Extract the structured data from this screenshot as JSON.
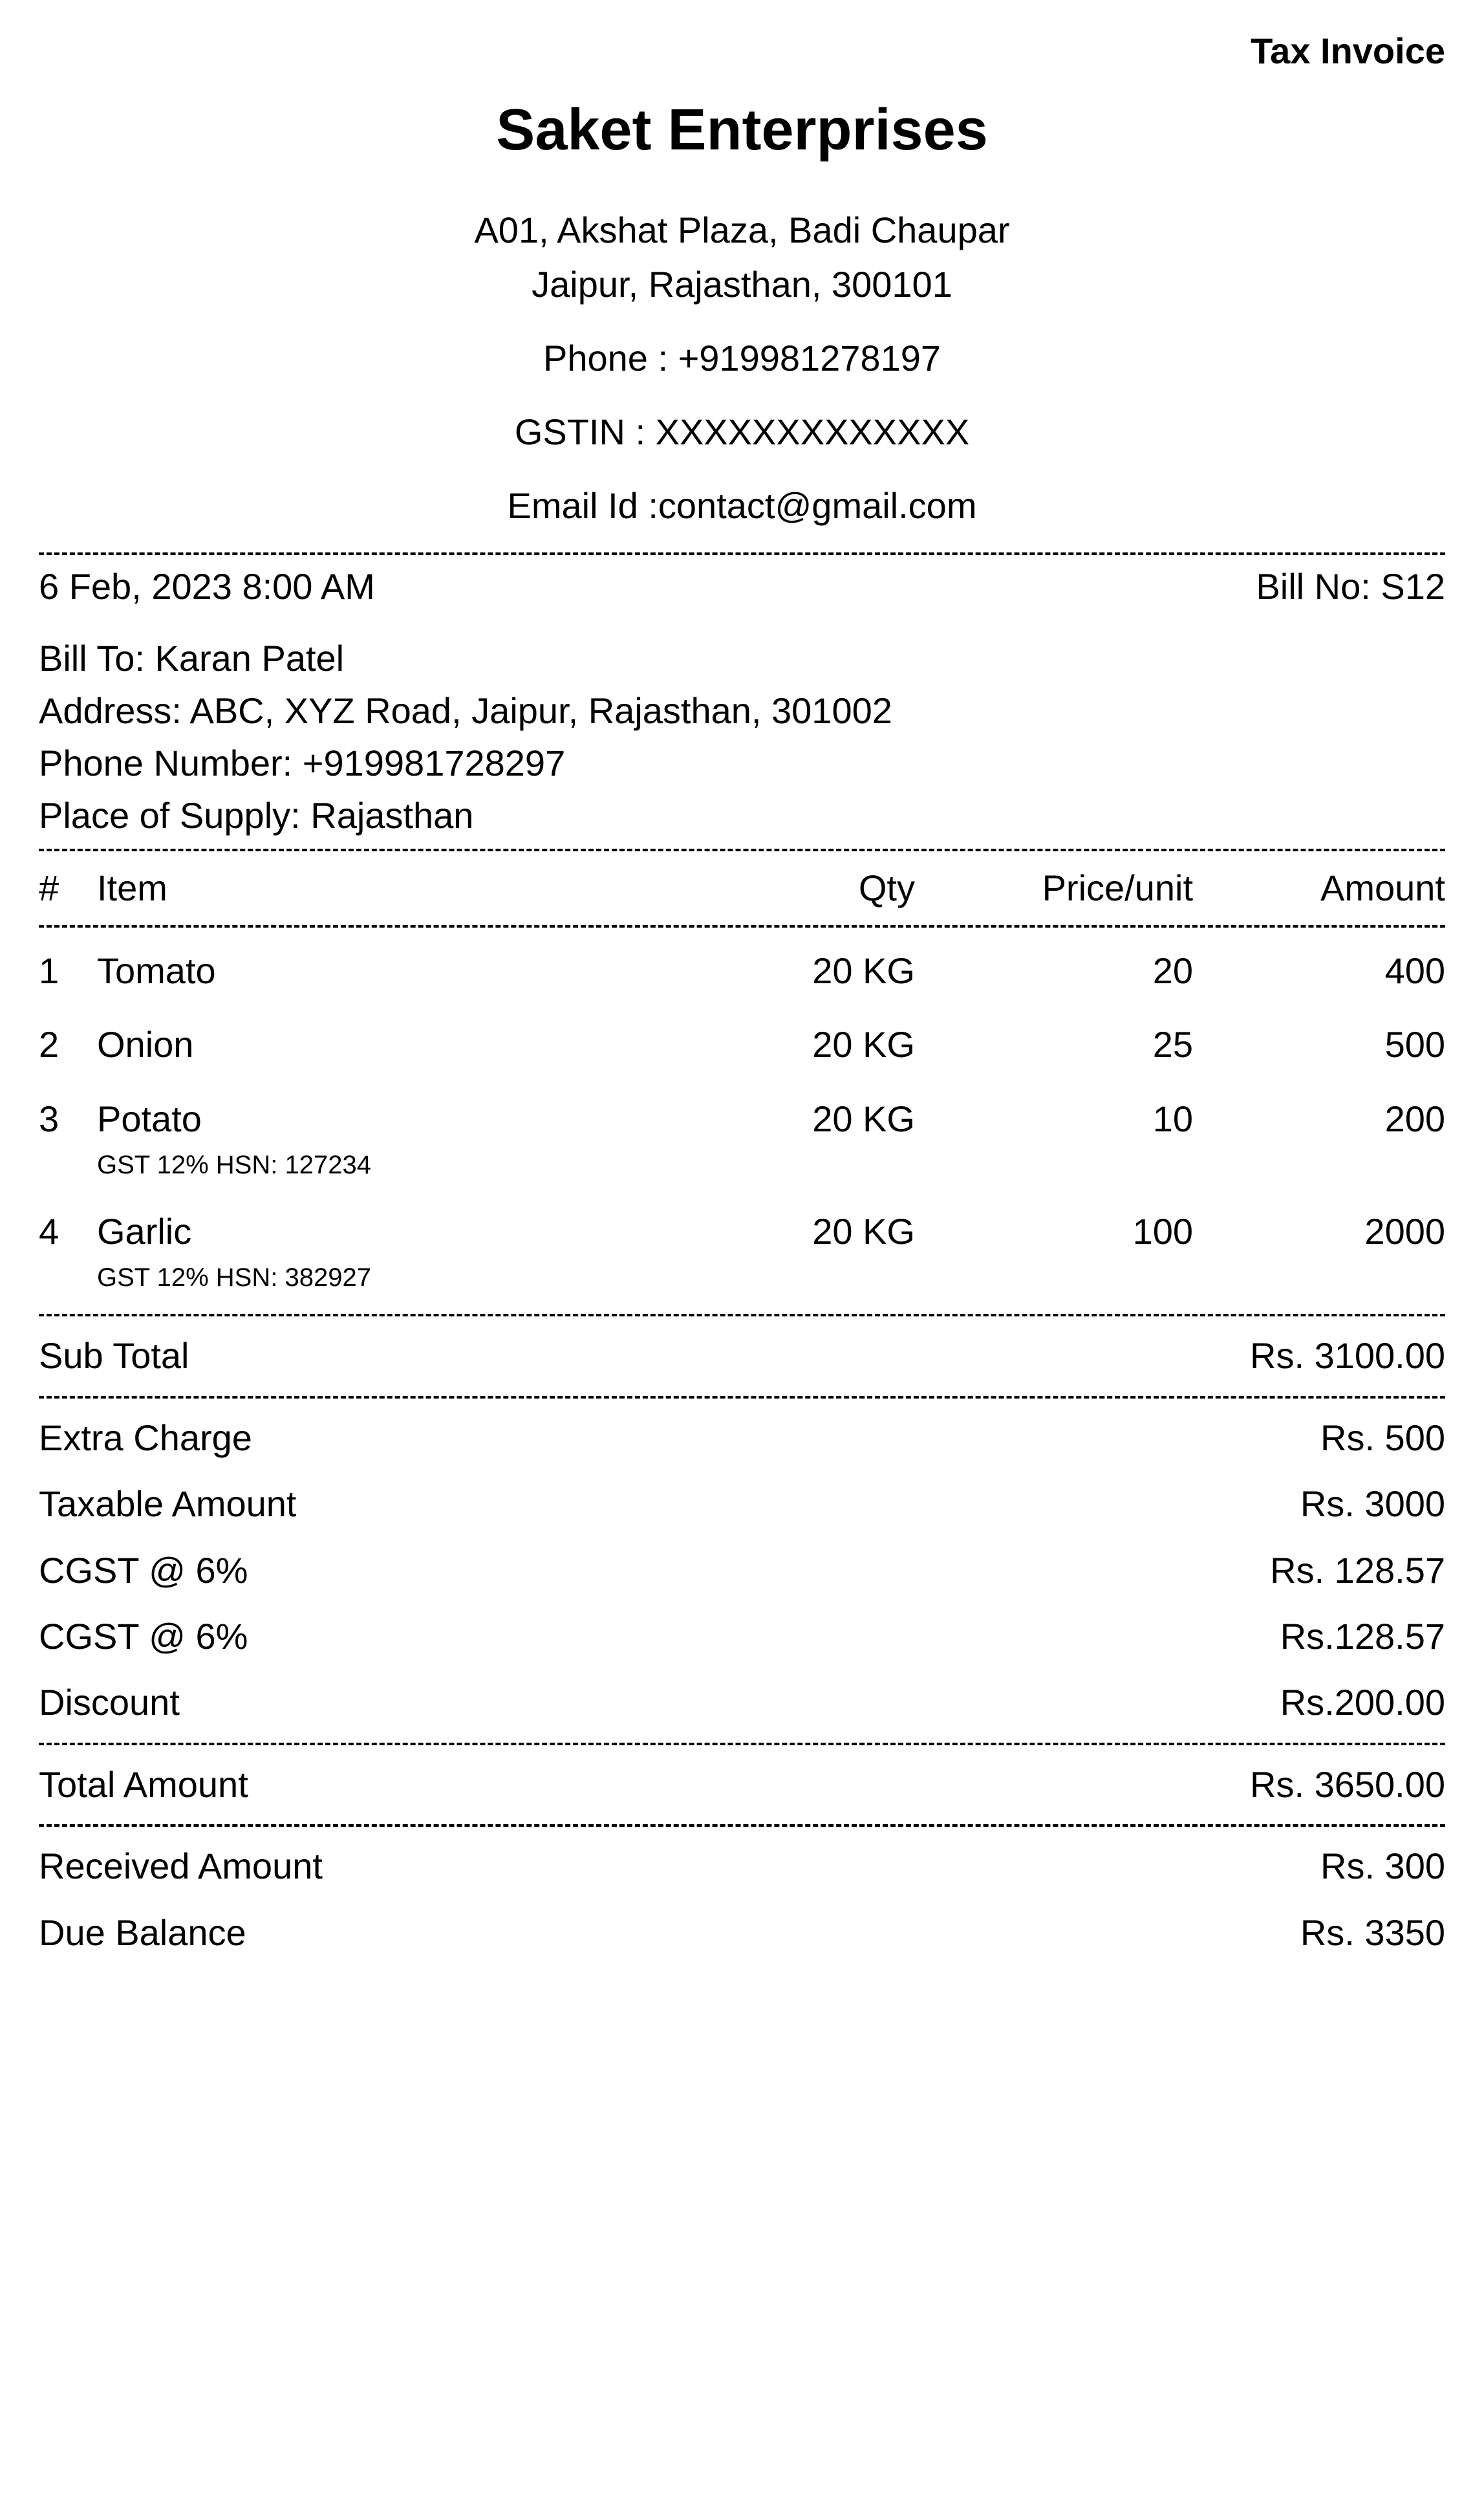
{
  "header": {
    "tax_invoice": "Tax Invoice",
    "company_name": "Saket Enterprises",
    "address_line1": "A01, Akshat Plaza, Badi Chaupar",
    "address_line2": "Jaipur, Rajasthan, 300101",
    "phone": "Phone : +919981278197",
    "gstin": "GSTIN : XXXXXXXXXXXXX",
    "email": "Email Id :contact@gmail.com"
  },
  "meta": {
    "datetime": "6 Feb, 2023  8:00 AM",
    "bill_no": "Bill No: S12"
  },
  "bill_to": {
    "name": "Bill To: Karan Patel",
    "address": "Address: ABC, XYZ Road, Jaipur, Rajasthan, 301002",
    "phone": "Phone Number: +919981728297",
    "place_of_supply": "Place of Supply: Rajasthan"
  },
  "columns": {
    "idx": "#",
    "item": "Item",
    "qty": "Qty",
    "price": "Price/unit",
    "amount": "Amount"
  },
  "items": [
    {
      "idx": "1",
      "name": "Tomato",
      "sub": "",
      "qty": "20 KG",
      "price": "20",
      "amount": "400"
    },
    {
      "idx": "2",
      "name": "Onion",
      "sub": "",
      "qty": "20 KG",
      "price": "25",
      "amount": "500"
    },
    {
      "idx": "3",
      "name": "Potato",
      "sub": "GST 12%  HSN: 127234",
      "qty": "20 KG",
      "price": "10",
      "amount": "200"
    },
    {
      "idx": "4",
      "name": "Garlic",
      "sub": "GST 12%  HSN: 382927",
      "qty": "20 KG",
      "price": "100",
      "amount": "2000"
    }
  ],
  "summary": {
    "subtotal_label": "Sub Total",
    "subtotal_value": "Rs. 3100.00",
    "extra_label": "Extra Charge",
    "extra_value": "Rs. 500",
    "taxable_label": "Taxable Amount",
    "taxable_value": "Rs. 3000",
    "cgst1_label": "CGST @ 6%",
    "cgst1_value": "Rs. 128.57",
    "cgst2_label": "CGST @ 6%",
    "cgst2_value": "Rs.128.57",
    "discount_label": "Discount",
    "discount_value": "Rs.200.00",
    "total_label": "Total Amount",
    "total_value": "Rs. 3650.00",
    "received_label": "Received Amount",
    "received_value": "Rs. 300",
    "due_label": "Due Balance",
    "due_value": "Rs. 3350"
  }
}
